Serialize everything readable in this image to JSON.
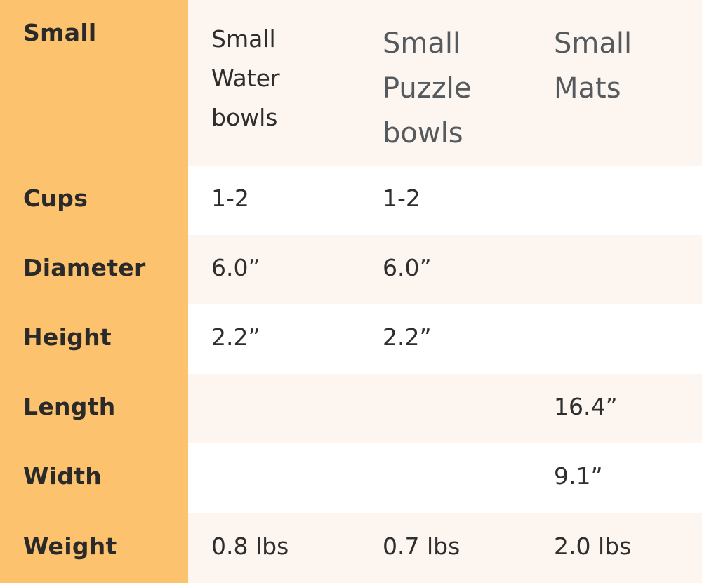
{
  "header": {
    "label": "Small",
    "columns": [
      "Small\nWater\nbowls",
      "Small\nPuzzle\nbowls",
      "Small\nMats"
    ]
  },
  "rows": [
    {
      "label": "Cups",
      "values": [
        "1-2",
        "1-2",
        ""
      ]
    },
    {
      "label": "Diameter",
      "values": [
        "6.0”",
        "6.0”",
        ""
      ]
    },
    {
      "label": "Height",
      "values": [
        "2.2”",
        "2.2”",
        ""
      ]
    },
    {
      "label": "Length",
      "values": [
        "",
        "",
        "16.4”"
      ]
    },
    {
      "label": "Width",
      "values": [
        "",
        "",
        "9.1”"
      ]
    },
    {
      "label": "Weight",
      "values": [
        "0.8 lbs",
        "0.7 lbs",
        "2.0 lbs"
      ]
    }
  ],
  "colors": {
    "label_column": "#fcc26d",
    "shaded_row": "#fdf5ef",
    "plain_row": "#ffffff",
    "text": "#2e2e2e",
    "header_text_muted": "#555a5e"
  }
}
